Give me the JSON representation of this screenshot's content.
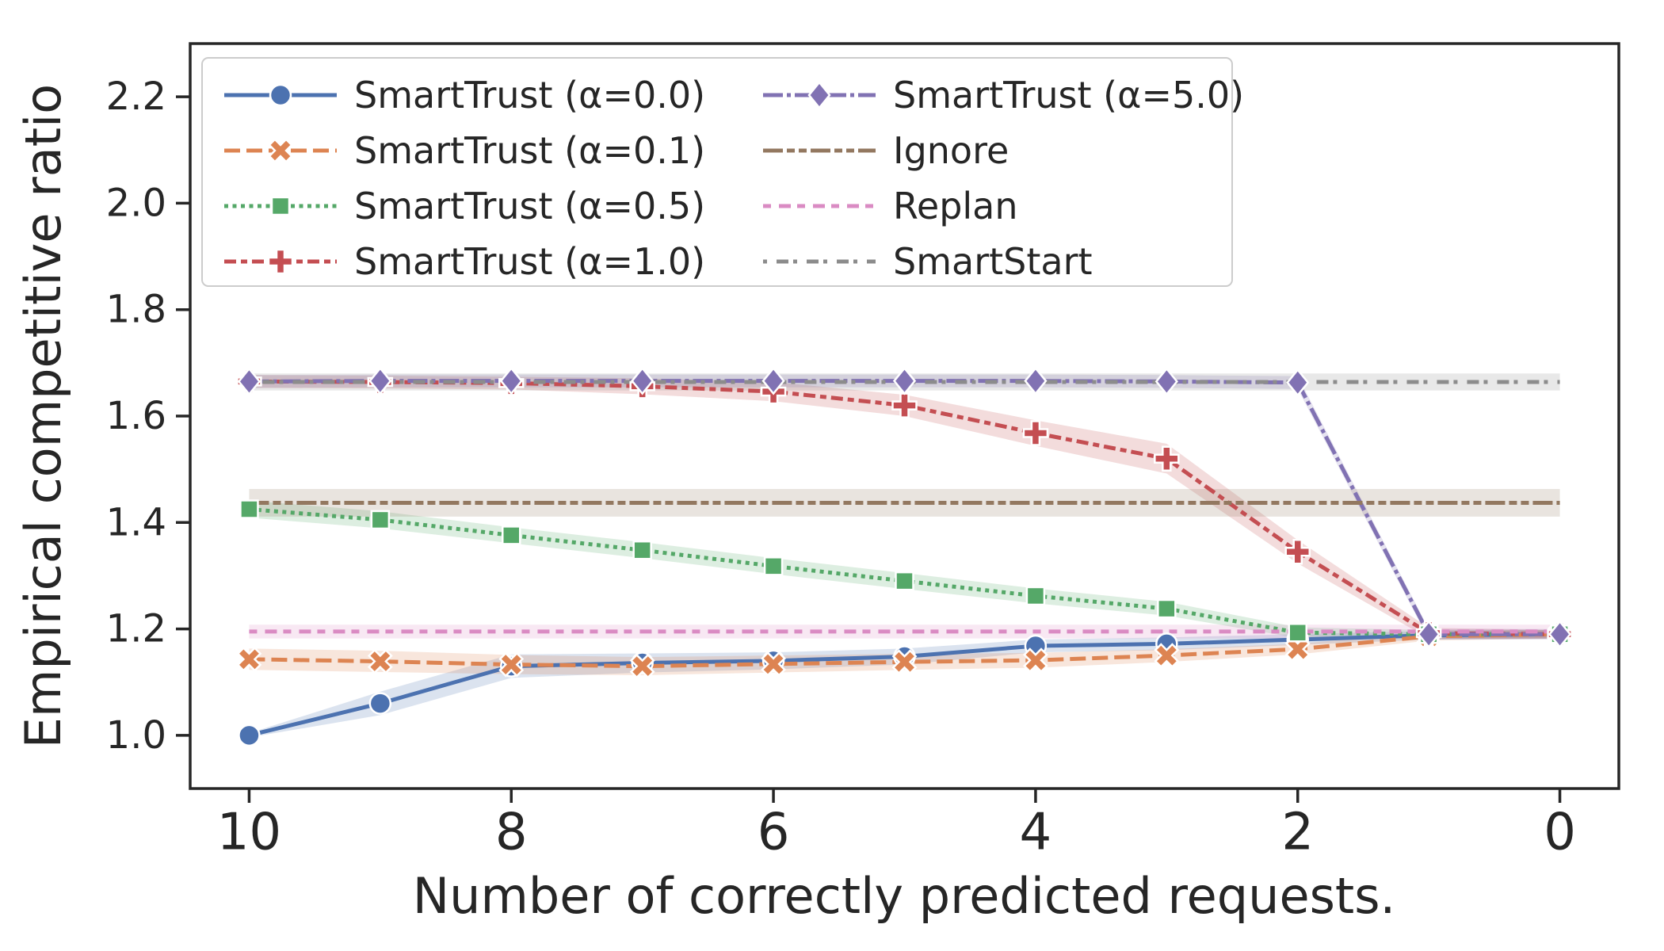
{
  "chart_data": {
    "type": "line",
    "title": "",
    "xlabel": "Number of correctly predicted requests.",
    "ylabel": "Empirical competitive ratio",
    "x": [
      10,
      9,
      8,
      7,
      6,
      5,
      4,
      3,
      2,
      1,
      0
    ],
    "x_tick_labels": [
      "10",
      "8",
      "6",
      "4",
      "2",
      "0"
    ],
    "x_tick_values": [
      10,
      8,
      6,
      4,
      2,
      0
    ],
    "y_tick_labels": [
      "1.0",
      "1.2",
      "1.4",
      "1.6",
      "1.8",
      "2.0",
      "2.2"
    ],
    "y_tick_values": [
      1.0,
      1.2,
      1.4,
      1.6,
      1.8,
      2.0,
      2.2
    ],
    "xlim": [
      10.45,
      -0.45
    ],
    "ylim": [
      0.9,
      2.3
    ],
    "x_axis_reversed": true,
    "grid": false,
    "legend": {
      "position": "upper-left",
      "columns": 2,
      "order": "column-major"
    },
    "series": [
      {
        "name": "SmartTrust (α=0.0)",
        "color": "#4C72B0",
        "marker": "circle",
        "line_style": "solid",
        "dasharray": "",
        "values": [
          1.0,
          1.06,
          1.13,
          1.136,
          1.14,
          1.148,
          1.168,
          1.172,
          1.18,
          1.188,
          1.19
        ],
        "band": [
          0.004,
          0.022,
          0.022,
          0.018,
          0.016,
          0.015,
          0.012,
          0.012,
          0.01,
          0.008,
          0.008
        ]
      },
      {
        "name": "SmartTrust (α=0.1)",
        "color": "#DD8452",
        "marker": "x",
        "line_style": "dashed",
        "dasharray": "20 8",
        "values": [
          1.143,
          1.139,
          1.133,
          1.13,
          1.134,
          1.138,
          1.141,
          1.15,
          1.162,
          1.186,
          1.19
        ],
        "band": [
          0.02,
          0.02,
          0.018,
          0.017,
          0.016,
          0.015,
          0.014,
          0.012,
          0.01,
          0.008,
          0.008
        ]
      },
      {
        "name": "SmartTrust (α=0.5)",
        "color": "#55A868",
        "marker": "square",
        "line_style": "dotted",
        "dasharray": "5 5.5",
        "values": [
          1.425,
          1.405,
          1.376,
          1.348,
          1.318,
          1.29,
          1.262,
          1.238,
          1.193,
          1.19,
          1.19
        ],
        "band": [
          0.016,
          0.016,
          0.015,
          0.015,
          0.015,
          0.015,
          0.014,
          0.013,
          0.01,
          0.008,
          0.008
        ]
      },
      {
        "name": "SmartTrust (α=1.0)",
        "color": "#C44E52",
        "marker": "plus",
        "line_style": "dash-dot",
        "dasharray": "15 6 8 6",
        "values": [
          1.665,
          1.664,
          1.662,
          1.656,
          1.646,
          1.62,
          1.568,
          1.52,
          1.345,
          1.192,
          1.19
        ],
        "band": [
          0.012,
          0.012,
          0.012,
          0.015,
          0.018,
          0.02,
          0.024,
          0.028,
          0.022,
          0.01,
          0.008
        ]
      },
      {
        "name": "SmartTrust (α=5.0)",
        "color": "#8172B3",
        "marker": "diamond",
        "line_style": "long-dash-dot",
        "dasharray": "25 5 5 5",
        "values": [
          1.665,
          1.666,
          1.666,
          1.666,
          1.666,
          1.666,
          1.666,
          1.665,
          1.663,
          1.19,
          1.19
        ],
        "band": [
          0.012,
          0.012,
          0.012,
          0.012,
          0.012,
          0.012,
          0.012,
          0.012,
          0.012,
          0.01,
          0.01
        ]
      },
      {
        "name": "Ignore",
        "color": "#937860",
        "marker": "none",
        "line_style": "dash-dot-dot",
        "dasharray": "25 5 10 5 10 5",
        "values": [
          1.437,
          1.437,
          1.437,
          1.437,
          1.437,
          1.437,
          1.437,
          1.437,
          1.437,
          1.437,
          1.437
        ],
        "band": [
          0.026,
          0.026,
          0.026,
          0.026,
          0.026,
          0.026,
          0.026,
          0.026,
          0.026,
          0.026,
          0.026
        ]
      },
      {
        "name": "Replan",
        "color": "#DA8BC3",
        "marker": "none",
        "line_style": "dash-dash-dot",
        "dasharray": "10 10 15 8",
        "values": [
          1.195,
          1.195,
          1.195,
          1.195,
          1.195,
          1.195,
          1.195,
          1.195,
          1.195,
          1.195,
          1.195
        ],
        "band": [
          0.013,
          0.013,
          0.013,
          0.013,
          0.013,
          0.013,
          0.013,
          0.013,
          0.013,
          0.013,
          0.013
        ]
      },
      {
        "name": "SmartStart",
        "color": "#8C8C8C",
        "marker": "none",
        "line_style": "dot-dash",
        "dasharray": "5 12 15 6",
        "values": [
          1.664,
          1.664,
          1.664,
          1.664,
          1.664,
          1.664,
          1.664,
          1.664,
          1.664,
          1.664,
          1.664
        ],
        "band": [
          0.016,
          0.016,
          0.016,
          0.016,
          0.016,
          0.016,
          0.016,
          0.016,
          0.016,
          0.016,
          0.016
        ]
      }
    ]
  },
  "style": {
    "text_color": "#262626",
    "spine_color": "#262626",
    "legend_border": "#cccccc",
    "legend_background": "#ffffff",
    "background": "#ffffff",
    "band_opacity": 0.2
  }
}
